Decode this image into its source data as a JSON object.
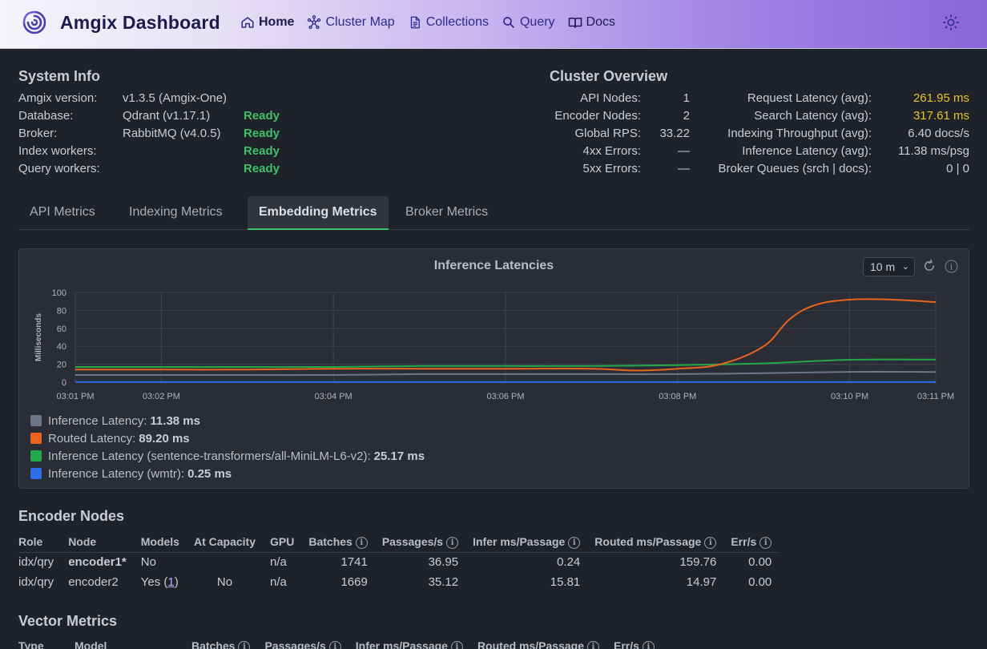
{
  "app": {
    "title": "Amgix Dashboard",
    "nav": [
      {
        "label": "Home",
        "icon": "home-icon"
      },
      {
        "label": "Cluster Map",
        "icon": "network-icon"
      },
      {
        "label": "Collections",
        "icon": "document-icon"
      },
      {
        "label": "Query",
        "icon": "search-icon"
      },
      {
        "label": "Docs",
        "icon": "book-icon"
      }
    ],
    "theme_icon": "sun-icon"
  },
  "system_info": {
    "title": "System Info",
    "rows": [
      {
        "label": "Amgix version:",
        "value": "v1.3.5 (Amgix-One)",
        "status": ""
      },
      {
        "label": "Database:",
        "value": "Qdrant (v1.17.1)",
        "status": "Ready"
      },
      {
        "label": "Broker:",
        "value": "RabbitMQ (v4.0.5)",
        "status": "Ready"
      },
      {
        "label": "Index workers:",
        "value": "",
        "status": "Ready"
      },
      {
        "label": "Query workers:",
        "value": "",
        "status": "Ready"
      }
    ]
  },
  "cluster_overview": {
    "title": "Cluster Overview",
    "left": [
      {
        "label": "API Nodes:",
        "value": "1"
      },
      {
        "label": "Encoder Nodes:",
        "value": "2"
      },
      {
        "label": "Global RPS:",
        "value": "33.22"
      },
      {
        "label": "4xx Errors:",
        "value": "—"
      },
      {
        "label": "5xx Errors:",
        "value": "—"
      }
    ],
    "right": [
      {
        "label": "Request Latency (avg):",
        "value": "261.95 ms",
        "highlight": true
      },
      {
        "label": "Search Latency (avg):",
        "value": "317.61 ms",
        "highlight": true
      },
      {
        "label": "Indexing Throughput (avg):",
        "value": "6.40 docs/s",
        "highlight": false
      },
      {
        "label": "Inference Latency (avg):",
        "value": "11.38 ms/psg",
        "highlight": false
      },
      {
        "label": "Broker Queues (srch | docs):",
        "value": "0 | 0",
        "highlight": false
      }
    ]
  },
  "tabs": [
    {
      "label": "API Metrics",
      "active": false
    },
    {
      "label": "Indexing Metrics",
      "active": false
    },
    {
      "label": "Embedding Metrics",
      "active": true
    },
    {
      "label": "Broker Metrics",
      "active": false
    }
  ],
  "chart_panel": {
    "range_selected": "10 m",
    "refresh_icon": "refresh-icon",
    "info_icon": "info-icon"
  },
  "chart_data": {
    "type": "line",
    "title": "Inference Latencies",
    "ylabel": "Milliseconds",
    "xlabel": "",
    "ylim": [
      0,
      100
    ],
    "yticks": [
      0,
      20,
      40,
      60,
      80,
      100
    ],
    "xlim": [
      0,
      10
    ],
    "x_ticks": [
      "03:01 PM",
      "03:02 PM",
      "03:04 PM",
      "03:06 PM",
      "03:08 PM",
      "03:10 PM",
      "03:11 PM"
    ],
    "x_tick_positions": [
      0,
      1,
      3,
      5,
      7,
      9,
      10
    ],
    "grid": true,
    "series": [
      {
        "name": "Inference Latency",
        "legend_value": "11.38 ms",
        "color": "#6b7689",
        "x": [
          0,
          1,
          2,
          3,
          4,
          5,
          6,
          7,
          8,
          9,
          10
        ],
        "values": [
          8,
          8,
          8,
          8,
          9,
          9,
          9,
          9,
          10,
          11.5,
          11.4
        ]
      },
      {
        "name": "Routed Latency",
        "legend_value": "89.20 ms",
        "color": "#e8641f",
        "x": [
          0,
          1,
          2,
          3,
          4,
          5,
          6,
          6.5,
          7,
          7.5,
          8,
          8.3,
          8.6,
          9,
          9.5,
          10
        ],
        "values": [
          14,
          14,
          14,
          15,
          15,
          15,
          15,
          13,
          15,
          20,
          40,
          70,
          86,
          92,
          92,
          89.2
        ]
      },
      {
        "name": "Inference Latency (sentence-transformers/all-MiniLM-L6-v2)",
        "legend_value": "25.17 ms",
        "color": "#25a84a",
        "x": [
          0,
          1,
          2,
          3,
          4,
          5,
          6,
          7,
          8,
          9,
          10
        ],
        "values": [
          17,
          17,
          17,
          17,
          18,
          18,
          18,
          19,
          21,
          25,
          25.2
        ]
      },
      {
        "name": "Inference Latency (wmtr)",
        "legend_value": "0.25 ms",
        "color": "#2e6ee6",
        "x": [
          0,
          1,
          2,
          3,
          4,
          5,
          6,
          7,
          8,
          9,
          10
        ],
        "values": [
          0.3,
          0.3,
          0.3,
          0.3,
          0.3,
          0.3,
          0.3,
          0.3,
          0.3,
          0.3,
          0.25
        ]
      }
    ]
  },
  "encoder_nodes": {
    "title": "Encoder Nodes",
    "columns": [
      "Role",
      "Node",
      "Models",
      "At Capacity",
      "GPU",
      "Batches",
      "Passages/s",
      "Infer ms/Passage",
      "Routed ms/Passage",
      "Err/s"
    ],
    "rows": [
      {
        "role": "idx/qry",
        "node": "encoder1*",
        "models": "No",
        "models_link": "",
        "at_capacity": "",
        "gpu": "n/a",
        "batches": "1741",
        "passages": "36.95",
        "infer": "0.24",
        "routed": "159.76",
        "err": "0.00"
      },
      {
        "role": "idx/qry",
        "node": "encoder2",
        "models": "Yes (",
        "models_link": "1",
        "at_capacity": "No",
        "gpu": "n/a",
        "batches": "1669",
        "passages": "35.12",
        "infer": "15.81",
        "routed": "14.97",
        "err": "0.00"
      }
    ]
  },
  "vector_metrics": {
    "title": "Vector Metrics",
    "columns": [
      "Type",
      "Model",
      "Batches",
      "Passages/s",
      "Infer ms/Passage",
      "Routed ms/Passage",
      "Err/s"
    ]
  }
}
